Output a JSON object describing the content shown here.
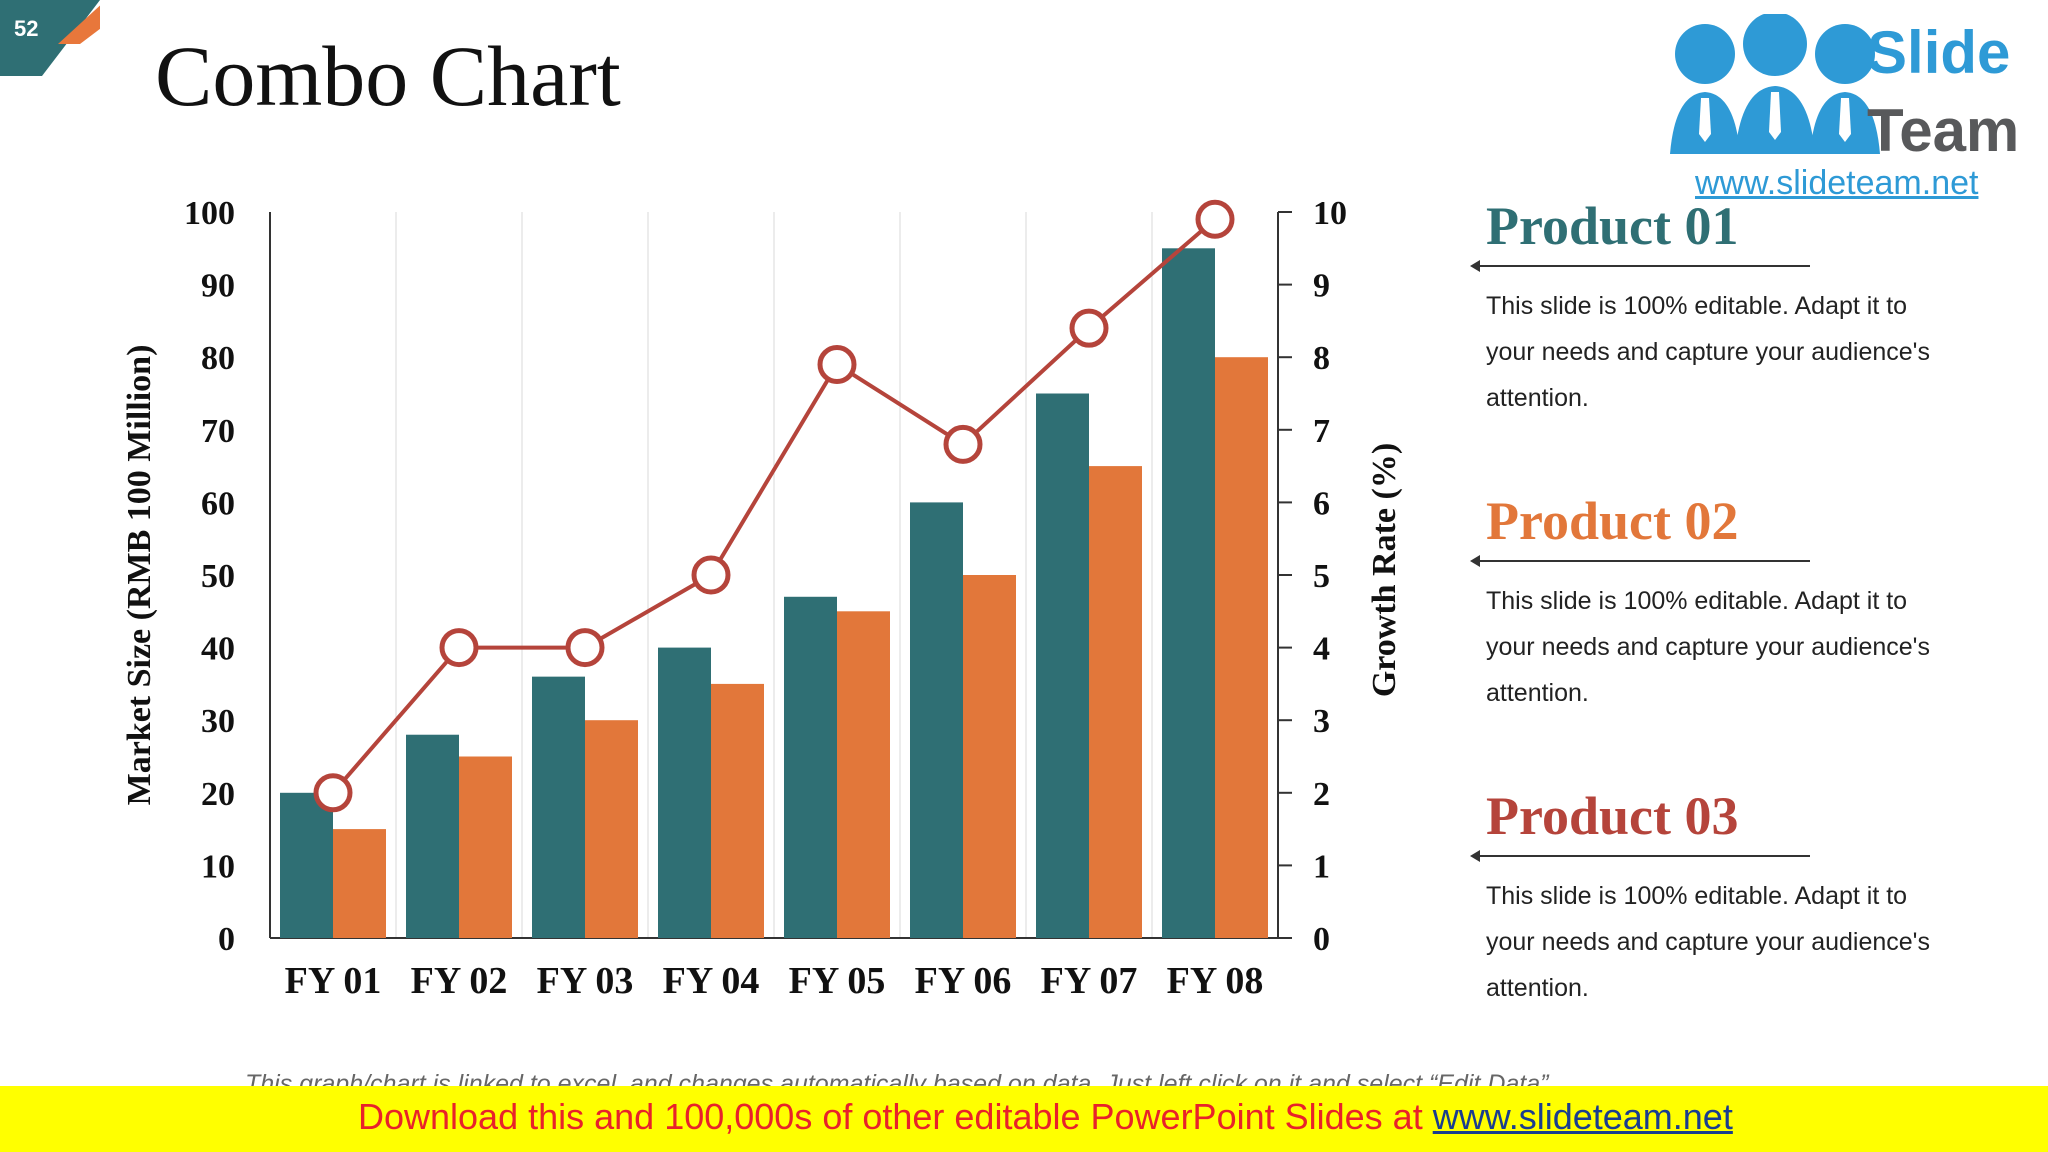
{
  "slide": {
    "number": "52",
    "title": "Combo Chart",
    "colors": {
      "tab_teal": "#2f6f74",
      "tab_orange": "#e8773b"
    }
  },
  "logo": {
    "brand_line1": "Slide",
    "brand_line2": "Team",
    "url": "www.slideteam.net",
    "icon": "people-group-icon"
  },
  "chart_data": {
    "type": "bar",
    "categories": [
      "FY 01",
      "FY 02",
      "FY 03",
      "FY 04",
      "FY 05",
      "FY 06",
      "FY 07",
      "FY 08"
    ],
    "series": [
      {
        "kind": "bar",
        "axis": "left",
        "color": "#2f6f74",
        "values": [
          20,
          28,
          36,
          40,
          47,
          60,
          75,
          95
        ]
      },
      {
        "kind": "bar",
        "axis": "left",
        "color": "#e2773a",
        "values": [
          15,
          25,
          30,
          35,
          45,
          50,
          65,
          80
        ]
      },
      {
        "kind": "line",
        "axis": "right",
        "color": "#b5443b",
        "values": [
          2,
          4,
          4,
          5,
          7.9,
          6.8,
          8.4,
          9.9
        ]
      }
    ],
    "ylabel": "Market Size (RMB 100 Million)",
    "y2label": "Growth Rate (%)",
    "ylim": [
      0,
      100
    ],
    "y2lim": [
      0,
      10
    ],
    "yticks": [
      "0",
      "10",
      "20",
      "30",
      "40",
      "50",
      "60",
      "70",
      "80",
      "90",
      "100"
    ],
    "y2ticks": [
      "0",
      "1",
      "2",
      "3",
      "4",
      "5",
      "6",
      "7",
      "8",
      "9",
      "10"
    ],
    "grid": "vertical"
  },
  "products": [
    {
      "title": "Product 01",
      "color": "#2f6f74",
      "text": "This slide is 100% editable. Adapt it to your needs and capture your audience's attention."
    },
    {
      "title": "Product 02",
      "color": "#e2773a",
      "text": "This slide is 100% editable. Adapt it to your needs and capture your audience's attention."
    },
    {
      "title": "Product 03",
      "color": "#b5443b",
      "text": "This slide is 100% editable. Adapt it to your needs and capture your audience's attention."
    }
  ],
  "footnote": "This graph/chart is linked to excel, and changes automatically based on data. Just left click on it and select “Edit Data”.",
  "banner": {
    "text": "Download this and 100,000s of other editable PowerPoint Slides at ",
    "link": "www.slideteam.net"
  }
}
